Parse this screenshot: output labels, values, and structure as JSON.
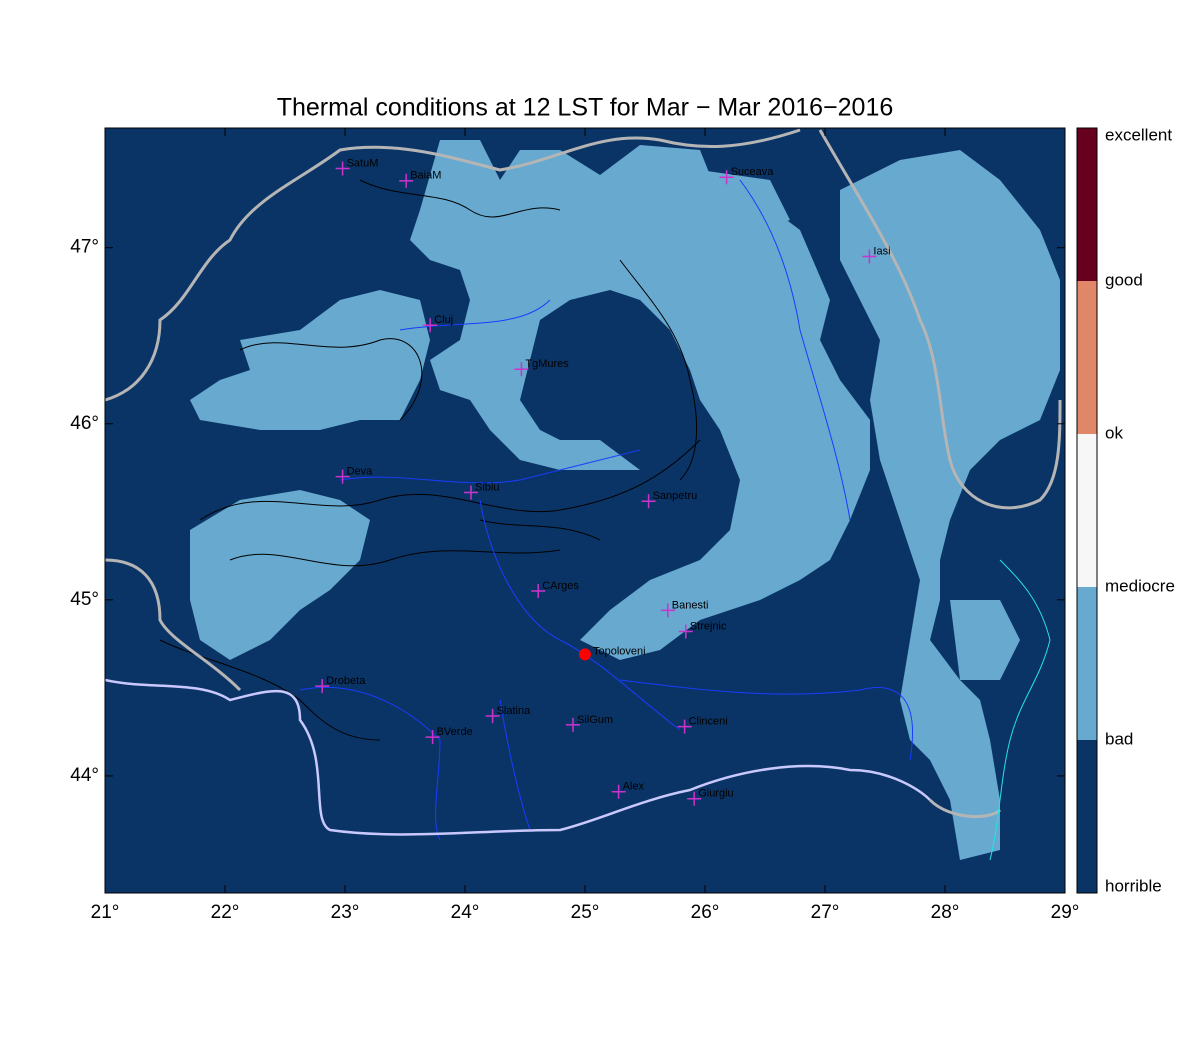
{
  "title": "Thermal conditions at 12 LST for Mar − Mar  2016−2016",
  "map": {
    "type": "map",
    "xlim": [
      21,
      29
    ],
    "ylim": [
      43.335,
      47.68
    ],
    "xticks": [
      {
        "value": 21,
        "label": "21°"
      },
      {
        "value": 22,
        "label": "22°"
      },
      {
        "value": 23,
        "label": "23°"
      },
      {
        "value": 24,
        "label": "24°"
      },
      {
        "value": 25,
        "label": "25°"
      },
      {
        "value": 26,
        "label": "26°"
      },
      {
        "value": 27,
        "label": "27°"
      },
      {
        "value": 28,
        "label": "28°"
      },
      {
        "value": 29,
        "label": "29°"
      }
    ],
    "yticks": [
      {
        "value": 44,
        "label": "44°"
      },
      {
        "value": 45,
        "label": "45°"
      },
      {
        "value": 46,
        "label": "46°"
      },
      {
        "value": 47,
        "label": "47°"
      }
    ],
    "stations": [
      {
        "name": "SatuM",
        "lon": 22.98,
        "lat": 47.45
      },
      {
        "name": "BaiaM",
        "lon": 23.51,
        "lat": 47.38
      },
      {
        "name": "Suceava",
        "lon": 26.18,
        "lat": 47.4
      },
      {
        "name": "Iasi",
        "lon": 27.37,
        "lat": 46.95
      },
      {
        "name": "Cluj",
        "lon": 23.71,
        "lat": 46.56
      },
      {
        "name": "TgMures",
        "lon": 24.47,
        "lat": 46.31
      },
      {
        "name": "Deva",
        "lon": 22.98,
        "lat": 45.7
      },
      {
        "name": "Sibiu",
        "lon": 24.05,
        "lat": 45.61
      },
      {
        "name": "Sanpetru",
        "lon": 25.53,
        "lat": 45.56
      },
      {
        "name": "CArges",
        "lon": 24.61,
        "lat": 45.05
      },
      {
        "name": "Banesti",
        "lon": 25.69,
        "lat": 44.94
      },
      {
        "name": "Strejnic",
        "lon": 25.84,
        "lat": 44.82
      },
      {
        "name": "Drobeta",
        "lon": 22.81,
        "lat": 44.51
      },
      {
        "name": "Slatina",
        "lon": 24.23,
        "lat": 44.34
      },
      {
        "name": "SilGum",
        "lon": 24.9,
        "lat": 44.29
      },
      {
        "name": "BVerde",
        "lon": 23.73,
        "lat": 44.22
      },
      {
        "name": "Clinceni",
        "lon": 25.83,
        "lat": 44.28
      },
      {
        "name": "Alex",
        "lon": 25.28,
        "lat": 43.91
      },
      {
        "name": "Giurgiu",
        "lon": 25.91,
        "lat": 43.87
      }
    ],
    "highlight": {
      "name": "Topoloveni",
      "lon": 25.0,
      "lat": 44.69,
      "color": "#ff0000"
    },
    "station_color": "#cc33cc",
    "colorbar": {
      "labels": [
        "horrible",
        "bad",
        "mediocre",
        "ok",
        "good",
        "excellent"
      ],
      "colors": [
        "#0b3466",
        "#67a9cf",
        "#f7f7f7",
        "#e0876a",
        "#67001f"
      ]
    }
  }
}
